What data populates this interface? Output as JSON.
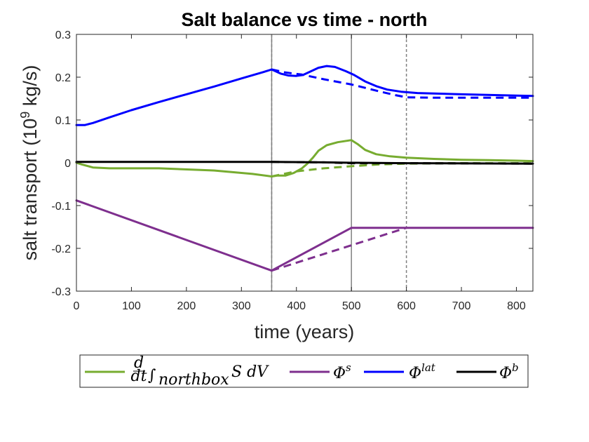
{
  "chart_data": {
    "type": "line",
    "title": "Salt balance vs time - north",
    "xlabel": "time (years)",
    "ylabel_text": "salt transport (10",
    "ylabel_exp": "9",
    "ylabel_unit": " kg/s)",
    "xlim": [
      0,
      830
    ],
    "ylim": [
      -0.3,
      0.3
    ],
    "xticks": [
      0,
      100,
      200,
      300,
      400,
      500,
      600,
      700,
      800
    ],
    "yticks": [
      -0.3,
      -0.2,
      -0.1,
      0,
      0.1,
      0.2,
      0.3
    ],
    "ytick_labels": [
      "-0.3",
      "-0.2",
      "-0.1",
      "0",
      "0.1",
      "0.2",
      "0.3"
    ],
    "grid": false,
    "legend_placement": "below",
    "vlines": [
      {
        "x": 355,
        "style": "dashed",
        "color": "#808080"
      },
      {
        "x": 355,
        "style": "solid",
        "color": "#808080"
      },
      {
        "x": 500,
        "style": "solid",
        "color": "#808080"
      },
      {
        "x": 600,
        "style": "dashed",
        "color": "#808080"
      }
    ],
    "series": [
      {
        "legend": "d/dt ∫northbox S dV",
        "legend_parts": {
          "num": "d",
          "den": "dt",
          "integral": "∫",
          "sub": "northbox",
          "body": "S dV"
        },
        "color": "#77AC30",
        "solid": [
          [
            0,
            0
          ],
          [
            10,
            -0.004
          ],
          [
            30,
            -0.011
          ],
          [
            60,
            -0.013
          ],
          [
            150,
            -0.013
          ],
          [
            250,
            -0.018
          ],
          [
            320,
            -0.026
          ],
          [
            355,
            -0.032
          ],
          [
            365,
            -0.03
          ],
          [
            380,
            -0.03
          ],
          [
            395,
            -0.024
          ],
          [
            410,
            -0.013
          ],
          [
            420,
            -0.002
          ],
          [
            430,
            0.012
          ],
          [
            440,
            0.028
          ],
          [
            455,
            0.041
          ],
          [
            475,
            0.048
          ],
          [
            500,
            0.053
          ],
          [
            512,
            0.043
          ],
          [
            525,
            0.03
          ],
          [
            545,
            0.02
          ],
          [
            570,
            0.015
          ],
          [
            600,
            0.012
          ],
          [
            650,
            0.009
          ],
          [
            700,
            0.007
          ],
          [
            750,
            0.006
          ],
          [
            800,
            0.005
          ],
          [
            830,
            0.004
          ]
        ],
        "dashed": [
          [
            355,
            -0.032
          ],
          [
            400,
            -0.02
          ],
          [
            450,
            -0.013
          ],
          [
            500,
            -0.008
          ],
          [
            550,
            -0.004
          ],
          [
            600,
            -0.002
          ],
          [
            700,
            -0.001
          ],
          [
            830,
            -0.001
          ]
        ]
      },
      {
        "legend": "Φs",
        "legend_parts": {
          "base": "Φ",
          "sup": "s"
        },
        "color": "#7E2F8E",
        "solid": [
          [
            0,
            -0.088
          ],
          [
            355,
            -0.252
          ],
          [
            500,
            -0.152
          ],
          [
            830,
            -0.152
          ]
        ],
        "dashed": [
          [
            355,
            -0.252
          ],
          [
            600,
            -0.152
          ]
        ]
      },
      {
        "legend": "Φlat",
        "legend_parts": {
          "base": "Φ",
          "sup": "lat"
        },
        "color": "#0000FF",
        "solid": [
          [
            0,
            0.088
          ],
          [
            15,
            0.088
          ],
          [
            30,
            0.093
          ],
          [
            60,
            0.106
          ],
          [
            100,
            0.123
          ],
          [
            150,
            0.142
          ],
          [
            200,
            0.16
          ],
          [
            250,
            0.178
          ],
          [
            300,
            0.197
          ],
          [
            340,
            0.212
          ],
          [
            355,
            0.218
          ],
          [
            362,
            0.214
          ],
          [
            372,
            0.208
          ],
          [
            385,
            0.204
          ],
          [
            400,
            0.203
          ],
          [
            412,
            0.205
          ],
          [
            425,
            0.213
          ],
          [
            440,
            0.222
          ],
          [
            455,
            0.226
          ],
          [
            470,
            0.224
          ],
          [
            490,
            0.214
          ],
          [
            505,
            0.205
          ],
          [
            525,
            0.19
          ],
          [
            545,
            0.179
          ],
          [
            565,
            0.171
          ],
          [
            590,
            0.166
          ],
          [
            620,
            0.163
          ],
          [
            700,
            0.16
          ],
          [
            800,
            0.157
          ],
          [
            830,
            0.156
          ]
        ],
        "dashed": [
          [
            355,
            0.218
          ],
          [
            380,
            0.211
          ],
          [
            410,
            0.206
          ],
          [
            450,
            0.195
          ],
          [
            500,
            0.183
          ],
          [
            550,
            0.167
          ],
          [
            580,
            0.158
          ],
          [
            600,
            0.153
          ],
          [
            650,
            0.152
          ],
          [
            830,
            0.152
          ]
        ]
      },
      {
        "legend": "Φb",
        "legend_parts": {
          "base": "Φ",
          "sup": "b"
        },
        "color": "#000000",
        "solid": [
          [
            0,
            0.002
          ],
          [
            355,
            0.002
          ],
          [
            450,
            0.001
          ],
          [
            500,
            0
          ],
          [
            600,
            -0.001
          ],
          [
            830,
            -0.002
          ]
        ],
        "dashed": [
          [
            355,
            0.002
          ],
          [
            450,
            0.001
          ],
          [
            500,
            -0.001
          ],
          [
            600,
            -0.001
          ],
          [
            830,
            -0.002
          ]
        ]
      }
    ]
  }
}
